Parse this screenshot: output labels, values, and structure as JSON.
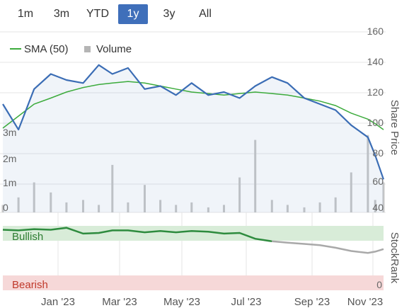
{
  "range_tabs": [
    {
      "label": "1m",
      "active": false
    },
    {
      "label": "3m",
      "active": false
    },
    {
      "label": "YTD",
      "active": false
    },
    {
      "label": "1y",
      "active": true
    },
    {
      "label": "3y",
      "active": false
    },
    {
      "label": "All",
      "active": false
    }
  ],
  "legend": {
    "sma_label": "SMA (50)",
    "volume_label": "Volume"
  },
  "y_axis_right_label": "Share Price",
  "y_ticks_right": [
    "160",
    "140",
    "120",
    "100",
    "80",
    "60",
    "40"
  ],
  "y_ticks_left": [
    "3m",
    "2m",
    "1m",
    "0"
  ],
  "x_ticks": [
    "Jan '23",
    "Mar '23",
    "May '23",
    "Jul '23",
    "Sep '23",
    "Nov '23"
  ],
  "stockrank": {
    "axis_label": "StockRank",
    "bullish_label": "Bullish",
    "bearish_label": "Bearish",
    "zero_tick": "0"
  },
  "colors": {
    "price": "#3b6db5",
    "sma": "#3cab3c",
    "volume": "#c8c8c8",
    "bullish_band": "#d8ecd8",
    "bearish_band": "#f6d8d8",
    "rank_line": "#2e8b3e",
    "rank_line_late": "#a9a9a9",
    "active_tab": "#3f6fba"
  },
  "chart_data": {
    "type": "line",
    "x": [
      "2022-11-15",
      "2022-11-30",
      "2022-12-15",
      "2022-12-31",
      "2023-01-15",
      "2023-01-31",
      "2023-02-15",
      "2023-02-28",
      "2023-03-15",
      "2023-03-31",
      "2023-04-15",
      "2023-04-30",
      "2023-05-15",
      "2023-05-31",
      "2023-06-15",
      "2023-06-30",
      "2023-07-15",
      "2023-07-31",
      "2023-08-15",
      "2023-08-31",
      "2023-09-15",
      "2023-09-30",
      "2023-10-15",
      "2023-10-31",
      "2023-11-07",
      "2023-11-15"
    ],
    "ylim": [
      40,
      160
    ],
    "series": [
      {
        "name": "Price",
        "values": [
          112,
          95,
          122,
          132,
          128,
          126,
          138,
          132,
          136,
          122,
          124,
          118,
          126,
          118,
          120,
          116,
          124,
          130,
          126,
          116,
          112,
          108,
          98,
          90,
          78,
          62
        ]
      },
      {
        "name": "SMA (50)",
        "values": [
          96,
          104,
          112,
          116,
          120,
          123,
          125,
          126,
          127,
          126,
          124,
          122,
          120,
          119,
          118,
          119,
          120,
          119,
          118,
          116,
          114,
          111,
          106,
          102,
          99,
          95
        ]
      },
      {
        "name": "Volume",
        "values": [
          0.3,
          0.6,
          1.2,
          0.8,
          0.4,
          0.5,
          0.3,
          1.9,
          0.4,
          1.1,
          0.5,
          0.3,
          0.4,
          0.2,
          0.3,
          1.4,
          2.9,
          0.5,
          0.3,
          0.2,
          0.4,
          0.6,
          1.6,
          3.1,
          0.5,
          1.2
        ]
      }
    ],
    "stockrank": {
      "ylim": [
        0,
        100
      ],
      "values": [
        94,
        93,
        95,
        94,
        97,
        88,
        89,
        93,
        93,
        90,
        92,
        90,
        92,
        91,
        88,
        89,
        80,
        76,
        74,
        72,
        70,
        66,
        61,
        58,
        60,
        64
      ]
    }
  }
}
